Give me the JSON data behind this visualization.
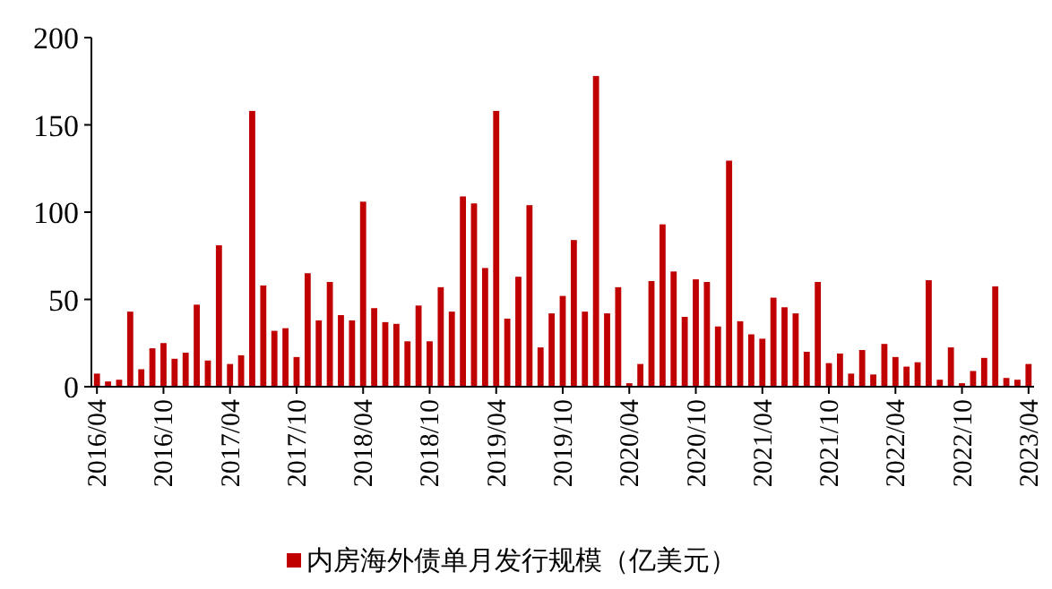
{
  "chart_data": {
    "type": "bar",
    "categories": [
      "2016/04",
      null,
      null,
      null,
      null,
      null,
      "2016/10",
      null,
      null,
      null,
      null,
      null,
      "2017/04",
      null,
      null,
      null,
      null,
      null,
      "2017/10",
      null,
      null,
      null,
      null,
      null,
      "2018/04",
      null,
      null,
      null,
      null,
      null,
      "2018/10",
      null,
      null,
      null,
      null,
      null,
      "2019/04",
      null,
      null,
      null,
      null,
      null,
      "2019/10",
      null,
      null,
      null,
      null,
      null,
      "2020/04",
      null,
      null,
      null,
      null,
      null,
      "2020/10",
      null,
      null,
      null,
      null,
      null,
      "2021/04",
      null,
      null,
      null,
      null,
      null,
      "2021/10",
      null,
      null,
      null,
      null,
      null,
      "2022/04",
      null,
      null,
      null,
      null,
      null,
      "2022/10",
      null,
      null,
      null,
      null,
      null,
      "2023/04"
    ],
    "series": [
      {
        "name": "内房海外债单月发行规模（亿美元）",
        "color": "#c00000",
        "values": [
          7.5,
          3,
          4,
          43,
          10,
          22,
          25,
          16,
          19.5,
          47,
          15,
          81,
          13,
          18,
          158,
          58,
          32,
          33.5,
          17,
          65,
          38,
          60,
          41,
          38,
          106,
          45,
          37,
          36,
          26,
          46.5,
          26,
          57,
          43,
          109,
          105,
          68,
          158,
          39,
          63,
          104,
          22.5,
          42,
          52,
          84,
          43,
          178,
          42,
          57,
          2,
          13,
          60.5,
          93,
          66,
          40,
          61.5,
          60,
          34.5,
          129.5,
          37.5,
          30,
          27.5,
          51,
          45.5,
          42,
          20,
          60,
          13.5,
          19,
          7.5,
          21,
          7,
          24.5,
          17,
          11.5,
          14,
          61,
          4,
          22.5,
          2,
          9,
          16.5,
          57.5,
          5,
          4,
          13
        ]
      }
    ],
    "ylim": [
      0,
      200
    ],
    "yticks": [
      0,
      50,
      100,
      150,
      200
    ],
    "legend": "bottom"
  }
}
